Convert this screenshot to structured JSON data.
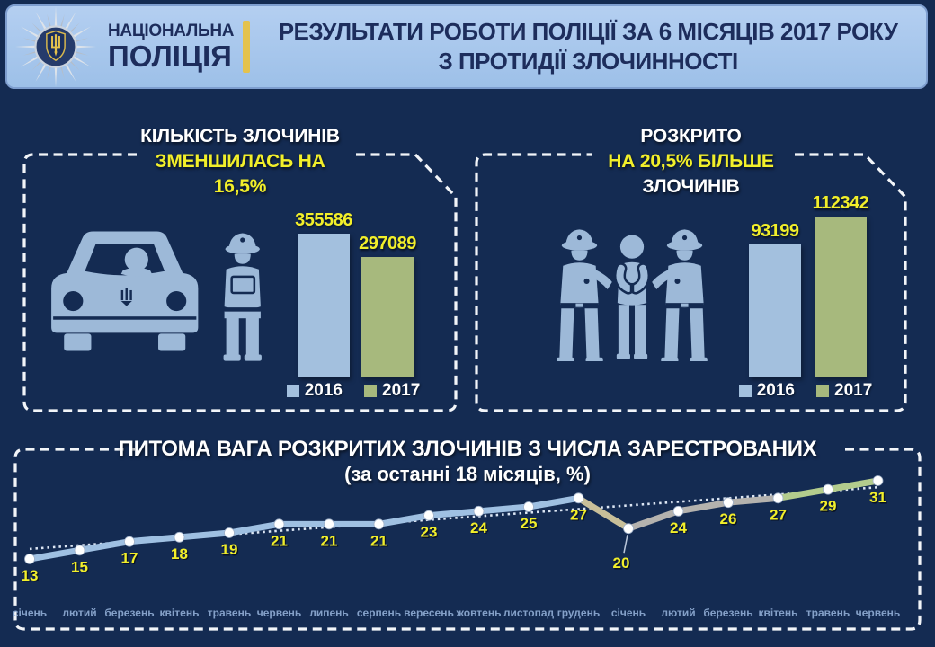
{
  "header": {
    "org_line1": "НАЦІОНАЛЬНА",
    "org_line2": "ПОЛІЦІЯ",
    "title_line1": "РЕЗУЛЬТАТИ РОБОТИ ПОЛІЦІЇ ЗА 6 МІСЯЦІВ 2017 РОКУ",
    "title_line2": "З ПРОТИДІЇ ЗЛОЧИННОСТІ"
  },
  "left_panel": {
    "title_white": "КІЛЬКІСТЬ ЗЛОЧИНІВ",
    "title_yellow_1": "ЗМЕНШИЛАСЬ НА",
    "title_yellow_2": "16,5%"
  },
  "right_panel": {
    "title_white_1": "РОЗКРИТО",
    "title_yellow": "НА 20,5% БІЛЬШЕ",
    "title_white_2": "ЗЛОЧИНІВ"
  },
  "bottom_panel": {
    "title_line1": "ПИТОМА ВАГА РОЗКРИТИХ ЗЛОЧИНІВ З ЧИСЛА ЗАРЕСТРОВАНИХ",
    "title_line2": "(за останні 18 місяців, %)"
  },
  "icons": {
    "badge": "national-police-badge",
    "left_panel_icon": "traffic-stop-car-and-officer",
    "right_panel_icon": "arrest-escort-two-officers"
  },
  "colors": {
    "background": "#142b52",
    "header_bg": "#a9c7ea",
    "header_text": "#1d2d5c",
    "accent_yellow": "#f2ef2a",
    "gold_divider": "#e4c24d",
    "bar_2016": "#a3c0de",
    "bar_2017": "#a7b97d",
    "line_blue": "#9fc0e2",
    "line_tan": "#c8bf99",
    "line_gray": "#b4b2ae",
    "line_green": "#b3cc8d",
    "trend_dots": "#dce6f4",
    "month_label": "#84a0c8",
    "icon_silhouette": "#9db9d8"
  },
  "chart_data": [
    {
      "name": "crimes_total",
      "type": "bar",
      "title": "КІЛЬКІСТЬ ЗЛОЧИНІВ ЗМЕНШИЛАСЬ НА 16,5%",
      "categories": [
        "2016",
        "2017"
      ],
      "values": [
        355586,
        297089
      ],
      "labels": [
        "355586",
        "297089"
      ],
      "legend": [
        "2016",
        "2017"
      ],
      "legend_position": "bottom"
    },
    {
      "name": "crimes_solved",
      "type": "bar",
      "title": "РОЗКРИТО НА 20,5% БІЛЬШЕ ЗЛОЧИНІВ",
      "categories": [
        "2016",
        "2017"
      ],
      "values": [
        93199,
        112342
      ],
      "labels": [
        "93199",
        "112342"
      ],
      "legend": [
        "2016",
        "2017"
      ],
      "legend_position": "bottom"
    },
    {
      "name": "solved_share_18_months",
      "type": "line",
      "title": "ПИТОМА ВАГА РОЗКРИТИХ ЗЛОЧИНІВ З ЧИСЛА ЗАРЕСТРОВАНИХ (за останні 18 місяців, %)",
      "categories": [
        "січень",
        "лютий",
        "березень",
        "квітень",
        "травень",
        "червень",
        "липень",
        "серпень",
        "вересень",
        "жовтень",
        "листопад",
        "грудень",
        "січень",
        "лютий",
        "березень",
        "квітень",
        "травень",
        "червень"
      ],
      "values": [
        13,
        15,
        17,
        18,
        19,
        21,
        21,
        21,
        23,
        24,
        25,
        27,
        20,
        24,
        26,
        27,
        29,
        31
      ],
      "segment_colors": [
        "blue",
        "blue",
        "blue",
        "blue",
        "blue",
        "blue",
        "blue",
        "blue",
        "blue",
        "blue",
        "blue",
        "tan",
        "gray",
        "gray",
        "gray",
        "green",
        "green"
      ],
      "trendline": {
        "start_value": 15.3,
        "end_value": 29.5
      },
      "ylim": [
        13,
        31
      ],
      "grid": false
    }
  ]
}
